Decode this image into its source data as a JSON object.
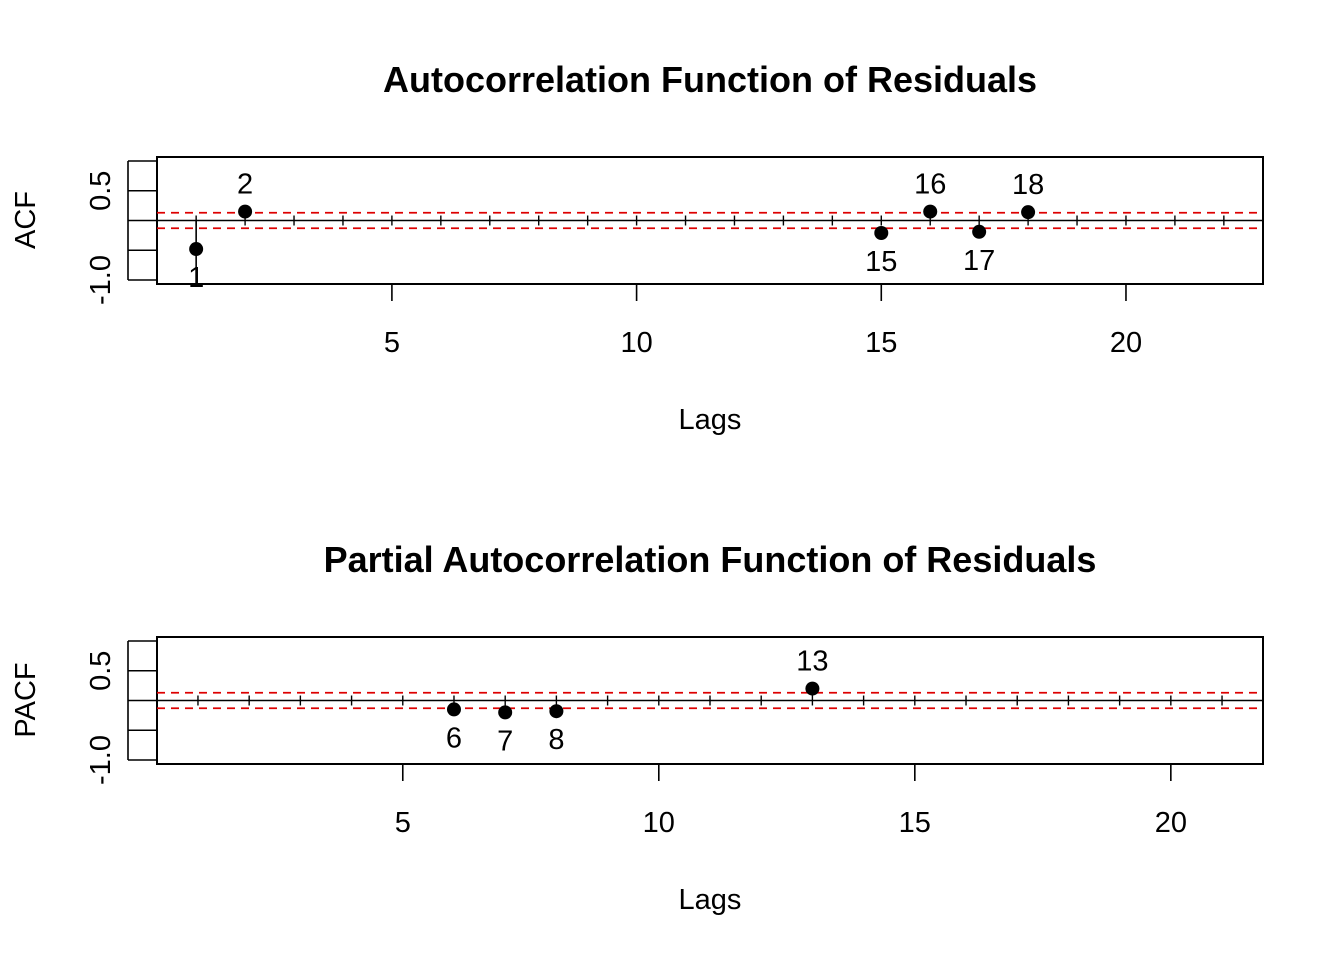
{
  "chart_data": [
    {
      "type": "scatter",
      "title": "Autocorrelation Function of Residuals",
      "xlabel": "Lags",
      "ylabel": "ACF",
      "xlim": [
        0.2,
        22.8
      ],
      "ylim": [
        -1,
        1
      ],
      "x_ticks": [
        5,
        10,
        15,
        20
      ],
      "y_ticks": [
        "-1.0",
        "0.5"
      ],
      "minor_x_ticks": [
        1,
        2,
        3,
        4,
        5,
        6,
        7,
        8,
        9,
        10,
        11,
        12,
        13,
        14,
        15,
        16,
        17,
        18,
        19,
        20,
        21,
        22
      ],
      "lags": [
        1,
        2,
        3,
        4,
        5,
        6,
        7,
        8,
        9,
        10,
        11,
        12,
        13,
        14,
        15,
        16,
        17,
        18,
        19,
        20,
        21,
        22
      ],
      "confidence_bounds": [
        0.13,
        -0.13
      ],
      "bound_color": "#dd0000",
      "significant_points": [
        {
          "lag": 1,
          "value": -0.48,
          "label": "1",
          "label_pos": "below"
        },
        {
          "lag": 2,
          "value": 0.15,
          "label": "2",
          "label_pos": "above"
        },
        {
          "lag": 15,
          "value": -0.21,
          "label": "15",
          "label_pos": "below"
        },
        {
          "lag": 16,
          "value": 0.15,
          "label": "16",
          "label_pos": "above"
        },
        {
          "lag": 17,
          "value": -0.19,
          "label": "17",
          "label_pos": "below"
        },
        {
          "lag": 18,
          "value": 0.14,
          "label": "18",
          "label_pos": "above"
        }
      ]
    },
    {
      "type": "scatter",
      "title": "Partial Autocorrelation Function of Residuals",
      "xlabel": "Lags",
      "ylabel": "PACF",
      "xlim": [
        0.2,
        21.8
      ],
      "ylim": [
        -1,
        1
      ],
      "x_ticks": [
        5,
        10,
        15,
        20
      ],
      "y_ticks": [
        "-1.0",
        "0.5"
      ],
      "minor_x_ticks": [
        1,
        2,
        3,
        4,
        5,
        6,
        7,
        8,
        9,
        10,
        11,
        12,
        13,
        14,
        15,
        16,
        17,
        18,
        19,
        20,
        21
      ],
      "lags": [
        1,
        2,
        3,
        4,
        5,
        6,
        7,
        8,
        9,
        10,
        11,
        12,
        13,
        14,
        15,
        16,
        17,
        18,
        19,
        20,
        21
      ],
      "confidence_bounds": [
        0.13,
        -0.13
      ],
      "bound_color": "#dd0000",
      "significant_points": [
        {
          "lag": 6,
          "value": -0.15,
          "label": "6",
          "label_pos": "below"
        },
        {
          "lag": 7,
          "value": -0.2,
          "label": "7",
          "label_pos": "below"
        },
        {
          "lag": 8,
          "value": -0.18,
          "label": "8",
          "label_pos": "below"
        },
        {
          "lag": 13,
          "value": 0.2,
          "label": "13",
          "label_pos": "above"
        }
      ]
    }
  ]
}
